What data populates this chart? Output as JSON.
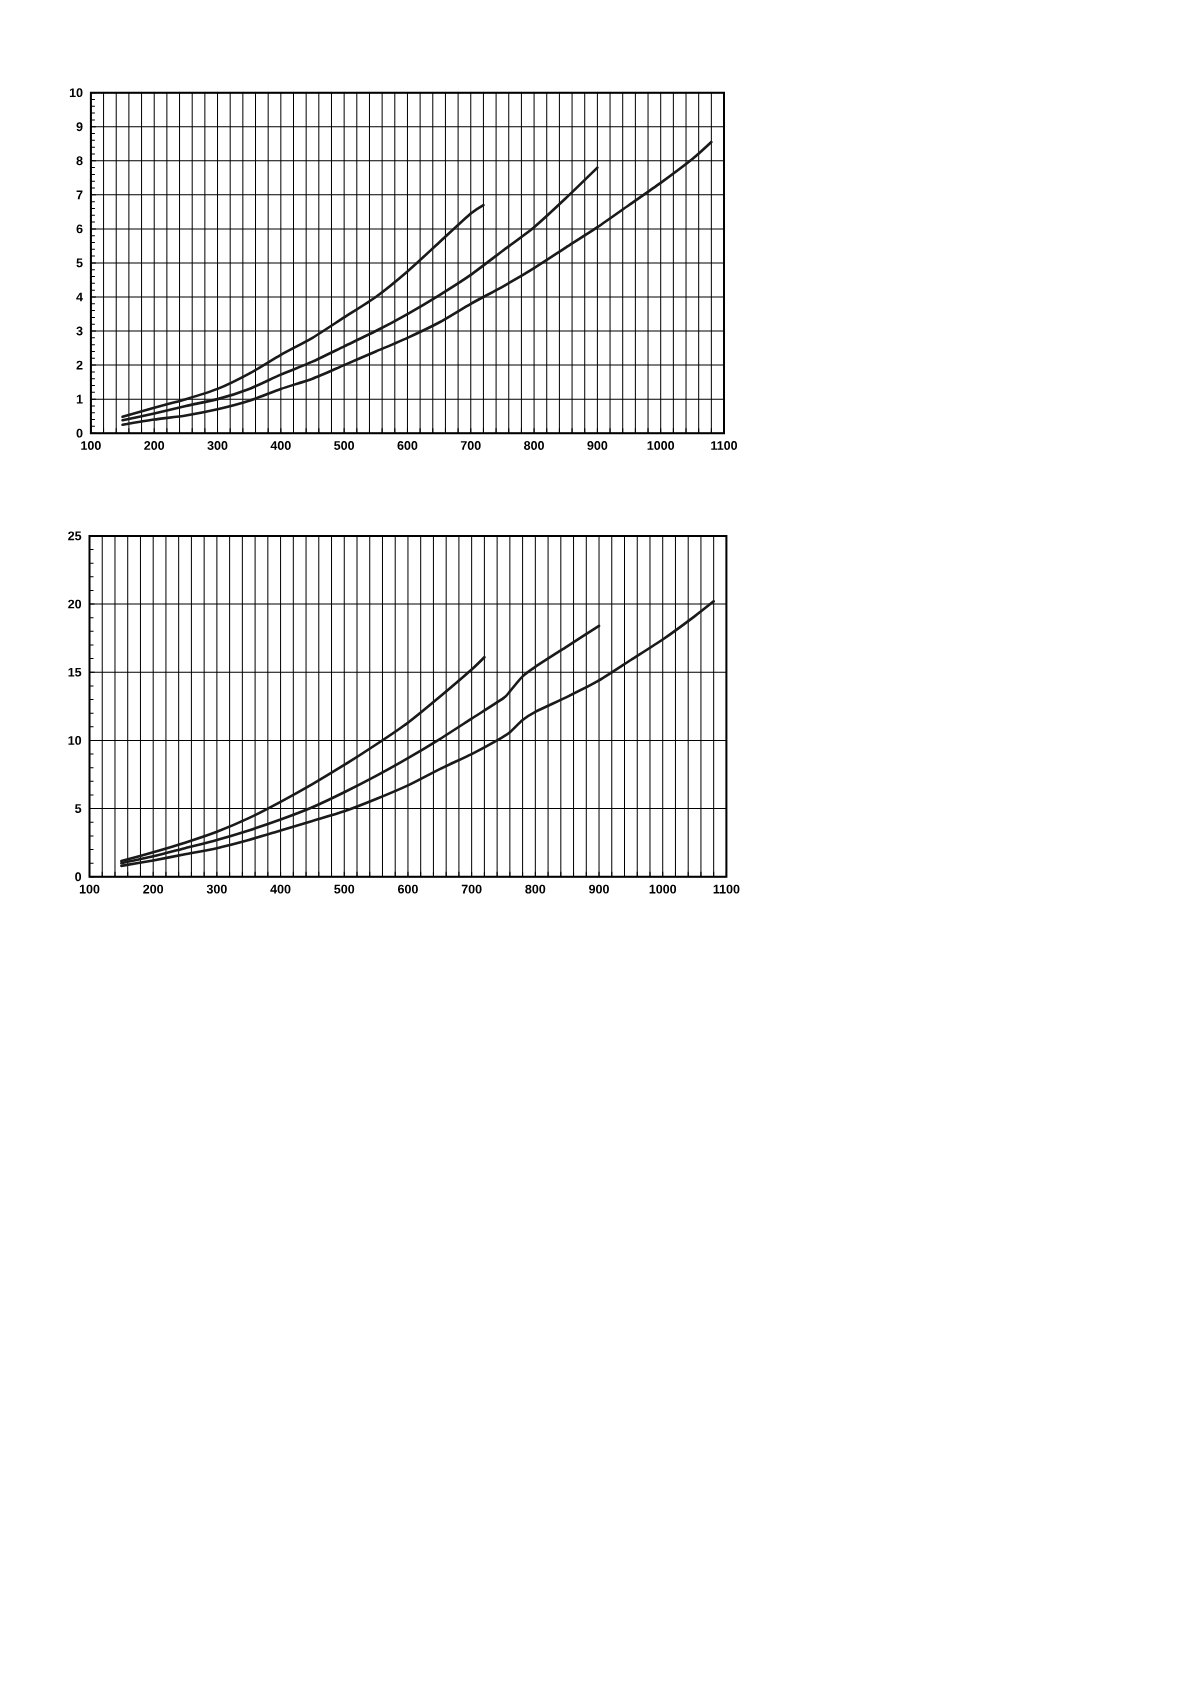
{
  "chart_data": [
    {
      "type": "line",
      "xlim": [
        100,
        1100
      ],
      "ylim": [
        0,
        10
      ],
      "xticks": [
        100,
        {
          "value": 120,
          "label": null
        },
        {
          "value": 140,
          "label": null
        },
        {
          "value": 160,
          "label": null
        },
        {
          "value": 180,
          "label": null
        },
        200,
        {
          "value": 220,
          "label": null
        },
        {
          "value": 240,
          "label": null
        },
        {
          "value": 260,
          "label": null
        },
        {
          "value": 280,
          "label": null
        },
        300,
        {
          "value": 320,
          "label": null
        },
        {
          "value": 340,
          "label": null
        },
        {
          "value": 360,
          "label": null
        },
        {
          "value": 380,
          "label": null
        },
        400,
        {
          "value": 420,
          "label": null
        },
        {
          "value": 440,
          "label": null
        },
        {
          "value": 460,
          "label": null
        },
        {
          "value": 480,
          "label": null
        },
        500,
        {
          "value": 520,
          "label": null
        },
        {
          "value": 540,
          "label": null
        },
        {
          "value": 560,
          "label": null
        },
        {
          "value": 580,
          "label": null
        },
        600,
        {
          "value": 620,
          "label": null
        },
        {
          "value": 640,
          "label": null
        },
        {
          "value": 660,
          "label": null
        },
        {
          "value": 680,
          "label": null
        },
        700,
        {
          "value": 720,
          "label": null
        },
        {
          "value": 740,
          "label": null
        },
        {
          "value": 760,
          "label": null
        },
        {
          "value": 780,
          "label": null
        },
        800,
        {
          "value": 820,
          "label": null
        },
        {
          "value": 840,
          "label": null
        },
        {
          "value": 860,
          "label": null
        },
        {
          "value": 880,
          "label": null
        },
        900,
        {
          "value": 920,
          "label": null
        },
        {
          "value": 940,
          "label": null
        },
        {
          "value": 960,
          "label": null
        },
        {
          "value": 980,
          "label": null
        },
        1000,
        {
          "value": 1020,
          "label": null
        },
        {
          "value": 1040,
          "label": null
        },
        {
          "value": 1060,
          "label": null
        },
        {
          "value": 1080,
          "label": null
        },
        1100
      ],
      "yticks": [
        0,
        1,
        2,
        3,
        4,
        5,
        6,
        7,
        8,
        9,
        10
      ],
      "grid": true,
      "series": [
        {
          "color": "#1a1a1a",
          "x": [
            150,
            200,
            250,
            300,
            350,
            400,
            450,
            500,
            550,
            600,
            650,
            700,
            720
          ],
          "values": [
            0.48,
            0.75,
            1.0,
            1.3,
            1.75,
            2.3,
            2.8,
            3.4,
            4.0,
            4.75,
            5.6,
            6.45,
            6.7
          ]
        },
        {
          "color": "#1a1a1a",
          "x": [
            150,
            200,
            250,
            300,
            350,
            400,
            450,
            500,
            550,
            600,
            650,
            700,
            750,
            800,
            850,
            900
          ],
          "values": [
            0.38,
            0.58,
            0.8,
            1.0,
            1.3,
            1.72,
            2.1,
            2.55,
            3.0,
            3.5,
            4.05,
            4.65,
            5.35,
            6.05,
            6.9,
            7.8
          ]
        },
        {
          "color": "#1a1a1a",
          "x": [
            150,
            200,
            250,
            300,
            350,
            400,
            450,
            500,
            550,
            600,
            650,
            700,
            750,
            800,
            850,
            900,
            950,
            1000,
            1050,
            1080
          ],
          "values": [
            0.25,
            0.4,
            0.52,
            0.7,
            0.95,
            1.3,
            1.6,
            2.0,
            2.4,
            2.8,
            3.25,
            3.8,
            4.3,
            4.85,
            5.45,
            6.05,
            6.7,
            7.35,
            8.05,
            8.55
          ]
        }
      ]
    },
    {
      "type": "line",
      "xlim": [
        100,
        1100
      ],
      "ylim": [
        0,
        25
      ],
      "xticks": [
        100,
        {
          "value": 120,
          "label": null
        },
        {
          "value": 140,
          "label": null
        },
        {
          "value": 160,
          "label": null
        },
        {
          "value": 180,
          "label": null
        },
        200,
        {
          "value": 220,
          "label": null
        },
        {
          "value": 240,
          "label": null
        },
        {
          "value": 260,
          "label": null
        },
        {
          "value": 280,
          "label": null
        },
        300,
        {
          "value": 320,
          "label": null
        },
        {
          "value": 340,
          "label": null
        },
        {
          "value": 360,
          "label": null
        },
        {
          "value": 380,
          "label": null
        },
        400,
        {
          "value": 420,
          "label": null
        },
        {
          "value": 440,
          "label": null
        },
        {
          "value": 460,
          "label": null
        },
        {
          "value": 480,
          "label": null
        },
        500,
        {
          "value": 520,
          "label": null
        },
        {
          "value": 540,
          "label": null
        },
        {
          "value": 560,
          "label": null
        },
        {
          "value": 580,
          "label": null
        },
        600,
        {
          "value": 620,
          "label": null
        },
        {
          "value": 640,
          "label": null
        },
        {
          "value": 660,
          "label": null
        },
        {
          "value": 680,
          "label": null
        },
        700,
        {
          "value": 720,
          "label": null
        },
        {
          "value": 740,
          "label": null
        },
        {
          "value": 760,
          "label": null
        },
        {
          "value": 780,
          "label": null
        },
        800,
        {
          "value": 820,
          "label": null
        },
        {
          "value": 840,
          "label": null
        },
        {
          "value": 860,
          "label": null
        },
        {
          "value": 880,
          "label": null
        },
        900,
        {
          "value": 920,
          "label": null
        },
        {
          "value": 940,
          "label": null
        },
        {
          "value": 960,
          "label": null
        },
        {
          "value": 980,
          "label": null
        },
        1000,
        {
          "value": 1020,
          "label": null
        },
        {
          "value": 1040,
          "label": null
        },
        {
          "value": 1060,
          "label": null
        },
        {
          "value": 1080,
          "label": null
        },
        1100
      ],
      "yticks": [
        0,
        5,
        10,
        15,
        20,
        25
      ],
      "grid": true,
      "series": [
        {
          "color": "#1a1a1a",
          "x": [
            150,
            200,
            250,
            300,
            350,
            400,
            450,
            500,
            550,
            600,
            650,
            700,
            720
          ],
          "values": [
            1.15,
            1.8,
            2.5,
            3.3,
            4.3,
            5.5,
            6.8,
            8.2,
            9.7,
            11.3,
            13.2,
            15.2,
            16.1
          ]
        },
        {
          "color": "#1a1a1a",
          "x": [
            150,
            200,
            250,
            300,
            350,
            400,
            450,
            500,
            550,
            600,
            650,
            700,
            750,
            760,
            780,
            800,
            850,
            900
          ],
          "values": [
            1.0,
            1.5,
            2.1,
            2.7,
            3.4,
            4.2,
            5.1,
            6.2,
            7.4,
            8.7,
            10.1,
            11.6,
            13.1,
            13.6,
            14.7,
            15.4,
            16.9,
            18.4
          ]
        },
        {
          "color": "#1a1a1a",
          "x": [
            150,
            200,
            250,
            300,
            350,
            400,
            450,
            500,
            550,
            600,
            650,
            700,
            740,
            760,
            780,
            800,
            850,
            900,
            950,
            1000,
            1050,
            1080
          ],
          "values": [
            0.8,
            1.2,
            1.65,
            2.1,
            2.7,
            3.4,
            4.1,
            4.8,
            5.7,
            6.7,
            7.9,
            9.0,
            10.0,
            10.6,
            11.5,
            12.1,
            13.2,
            14.4,
            15.9,
            17.4,
            19.1,
            20.2
          ]
        }
      ]
    }
  ]
}
